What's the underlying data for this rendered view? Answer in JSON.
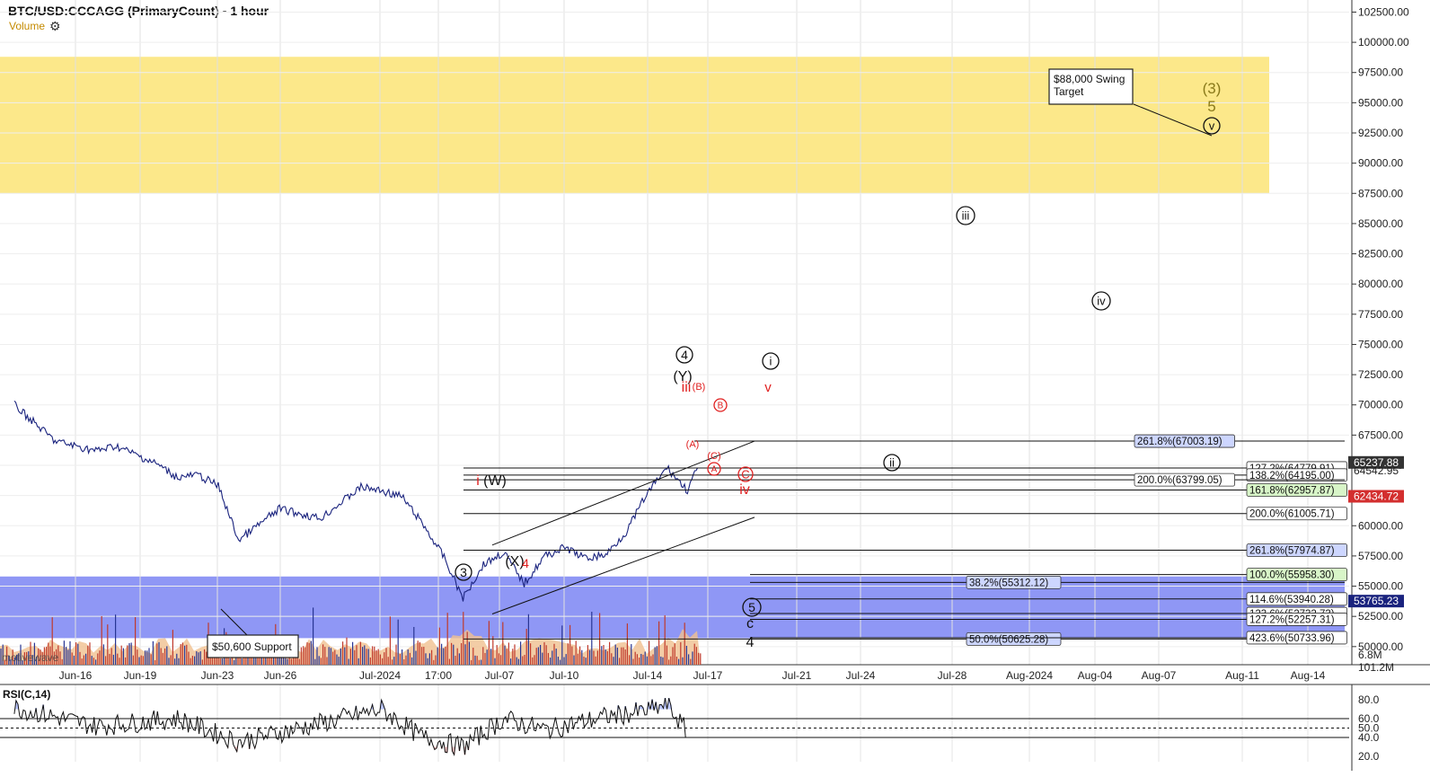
{
  "header": {
    "title": "BTC/USD:CCCAGG (PrimaryCount) - 1 hour",
    "volume_label": "Volume"
  },
  "colors": {
    "zone_yellow": "#fce88a",
    "zone_blue": "#8f97f5",
    "price_line": "#1a237e",
    "wave_red": "#e02020",
    "wave_olive": "#8a7a1a",
    "vol_bar": "#c0392b",
    "vol_area": "#f0c090",
    "label_blue": "#cdd6ff",
    "label_green": "#d8f5c8"
  },
  "chart_data": [
    {
      "type": "line",
      "name": "price",
      "title": "BTC/USD:CCCAGG (PrimaryCount) - 1 hour",
      "xlabel": "",
      "ylabel": "",
      "ylim": [
        48500,
        103500
      ],
      "x_ticks": [
        "Jun-16",
        "Jun-19",
        "Jun-23",
        "Jun-26",
        "Jul-2024",
        "17:00",
        "Jul-07",
        "Jul-10",
        "Jul-14",
        "Jul-17",
        "Jul-21",
        "Jul-24",
        "Jul-28",
        "Aug-2024",
        "Aug-04",
        "Aug-07",
        "Aug-11",
        "Aug-14"
      ],
      "y_ticks": [
        "102500.00",
        "100000.00",
        "97500.00",
        "95000.00",
        "92500.00",
        "90000.00",
        "87500.00",
        "85000.00",
        "82500.00",
        "80000.00",
        "77500.00",
        "75000.00",
        "72500.00",
        "70000.00",
        "67500.00",
        "65000.00",
        "62500.00",
        "60000.00",
        "57500.00",
        "55000.00",
        "52500.00",
        "50000.00"
      ],
      "x": [
        "Jun-13",
        "Jun-15",
        "Jun-17",
        "Jun-18",
        "Jun-20",
        "Jun-21",
        "Jun-22",
        "Jun-23",
        "Jun-24",
        "Jun-26",
        "Jun-28",
        "Jun-30",
        "Jul-01",
        "Jul-02",
        "Jul-03",
        "Jul-04",
        "Jul-05",
        "Jul-06",
        "Jul-07",
        "Jul-08",
        "Jul-09",
        "Jul-10",
        "Jul-11",
        "Jul-12",
        "Jul-13",
        "Jul-14",
        "Jul-15",
        "Jul-16",
        "Jul-16 12:00"
      ],
      "close": [
        70000,
        67000,
        66200,
        66600,
        65100,
        64000,
        64200,
        63300,
        58800,
        61400,
        60600,
        63200,
        62900,
        62400,
        60200,
        57600,
        54000,
        56800,
        57800,
        55200,
        57500,
        58200,
        57300,
        57600,
        59500,
        62600,
        64800,
        62900,
        64800
      ],
      "y_labels": [
        {
          "value": "65237.88",
          "style": "dark"
        },
        {
          "value": "64542.95",
          "style": "plain"
        },
        {
          "value": "62434.72",
          "style": "red"
        },
        {
          "value": "53765.23",
          "style": "blue"
        }
      ],
      "zones": [
        {
          "from": 87500,
          "to": 98800,
          "color": "yellow"
        },
        {
          "from": 50700,
          "to": 55800,
          "color": "blue"
        }
      ],
      "fib_levels": [
        {
          "label": "261.8%(67003.19)",
          "value": 67003.19,
          "style": "blue"
        },
        {
          "label": "127.2%(64779.91)",
          "value": 64779.91,
          "style": "plain"
        },
        {
          "label": "138.2%(64195.00)",
          "value": 64195.0,
          "style": "plain"
        },
        {
          "label": "200.0%(63799.05)",
          "value": 63799.05,
          "style": "plain"
        },
        {
          "label": "161.8%(62957.87)",
          "value": 62957.87,
          "style": "green"
        },
        {
          "label": "200.0%(61005.71)",
          "value": 61005.71,
          "style": "plain"
        },
        {
          "label": "261.8%(57974.87)",
          "value": 57974.87,
          "style": "blue"
        },
        {
          "label": "100.0%(55958.30)",
          "value": 55958.3,
          "style": "green"
        },
        {
          "label": "38.2%(55312.12)",
          "value": 55312.12,
          "style": "blue"
        },
        {
          "label": "114.6%(53940.28)",
          "value": 53940.28,
          "style": "plain"
        },
        {
          "label": "123.6%(52732.73)",
          "value": 52732.73,
          "style": "plain"
        },
        {
          "label": "127.2%(52257.31)",
          "value": 52257.31,
          "style": "plain"
        },
        {
          "label": "50.0%(50625.28)",
          "value": 50625.28,
          "style": "blue"
        },
        {
          "label": "423.6%(50733.96)",
          "value": 50733.96,
          "style": "plain"
        }
      ],
      "annotations": [
        {
          "text": "$88,000 Swing\nTarget"
        },
        {
          "text": "$50,600 Support"
        },
        {
          "text": "motivewave"
        }
      ],
      "wave_labels_black": [
        "3",
        "4",
        "5",
        "(W)",
        "(X)",
        "(Y)",
        "c",
        "4",
        "i",
        "ii",
        "iii",
        "iv",
        "v"
      ],
      "wave_labels_red": [
        "i",
        "iii",
        "iv",
        "v",
        "(A)",
        "(B)",
        "(C)",
        "A",
        "B",
        "C",
        "4"
      ],
      "wave_labels_olive": [
        "(3)",
        "5"
      ]
    },
    {
      "type": "bar",
      "name": "volume",
      "y_labels": [
        "101.2M",
        "6.8M"
      ]
    },
    {
      "type": "line",
      "name": "RSI",
      "title": "RSI(C,14)",
      "ylim": [
        0,
        100
      ],
      "y_ticks": [
        "80.0",
        "60.0",
        "50.0",
        "40.0",
        "20.0"
      ],
      "x": [
        "Jun-13",
        "Jun-17",
        "Jun-21",
        "Jun-24",
        "Jun-27",
        "Jul-01",
        "Jul-03",
        "Jul-05",
        "Jul-07",
        "Jul-09",
        "Jul-12",
        "Jul-14",
        "Jul-15",
        "Jul-16"
      ],
      "values": [
        72,
        52,
        60,
        35,
        50,
        70,
        40,
        30,
        60,
        48,
        62,
        68,
        75,
        45
      ]
    }
  ]
}
